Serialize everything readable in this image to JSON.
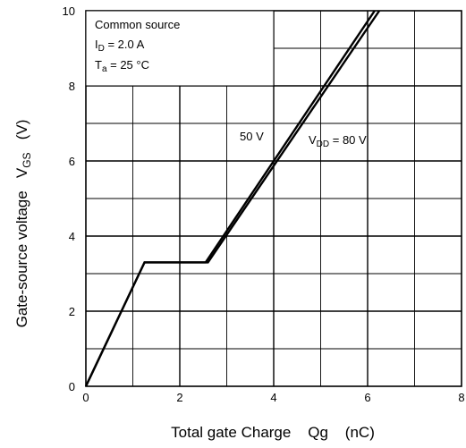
{
  "chart_data": {
    "type": "line",
    "title": "",
    "xlabel": "Total gate Charge    Qg    (nC)",
    "ylabel_main": "Gate-source voltage   V",
    "ylabel_sub": "GS",
    "ylabel_unit": "   (V)",
    "xlim": [
      0,
      8
    ],
    "ylim": [
      0,
      10
    ],
    "x_ticks": [
      0,
      2,
      4,
      6,
      8
    ],
    "y_ticks": [
      0,
      2,
      4,
      6,
      8,
      10
    ],
    "grid": true,
    "series": [
      {
        "name": "50 V",
        "points": [
          [
            0,
            0
          ],
          [
            1.25,
            3.3
          ],
          [
            2.55,
            3.3
          ],
          [
            6.15,
            10.0
          ]
        ]
      },
      {
        "name": "VDD = 80 V",
        "points": [
          [
            0,
            0
          ],
          [
            1.25,
            3.3
          ],
          [
            2.6,
            3.3
          ],
          [
            6.25,
            10.0
          ]
        ]
      }
    ],
    "conditions": [
      {
        "text": "Common source"
      },
      {
        "main": "I",
        "sub": "D",
        "rest": " = 2.0 A"
      },
      {
        "main": "T",
        "sub": "a",
        "rest": " = 25 °C"
      }
    ],
    "curve_labels": [
      {
        "text": "50 V"
      },
      {
        "main": "V",
        "sub": "DD",
        "rest": " = 80 V"
      }
    ]
  }
}
